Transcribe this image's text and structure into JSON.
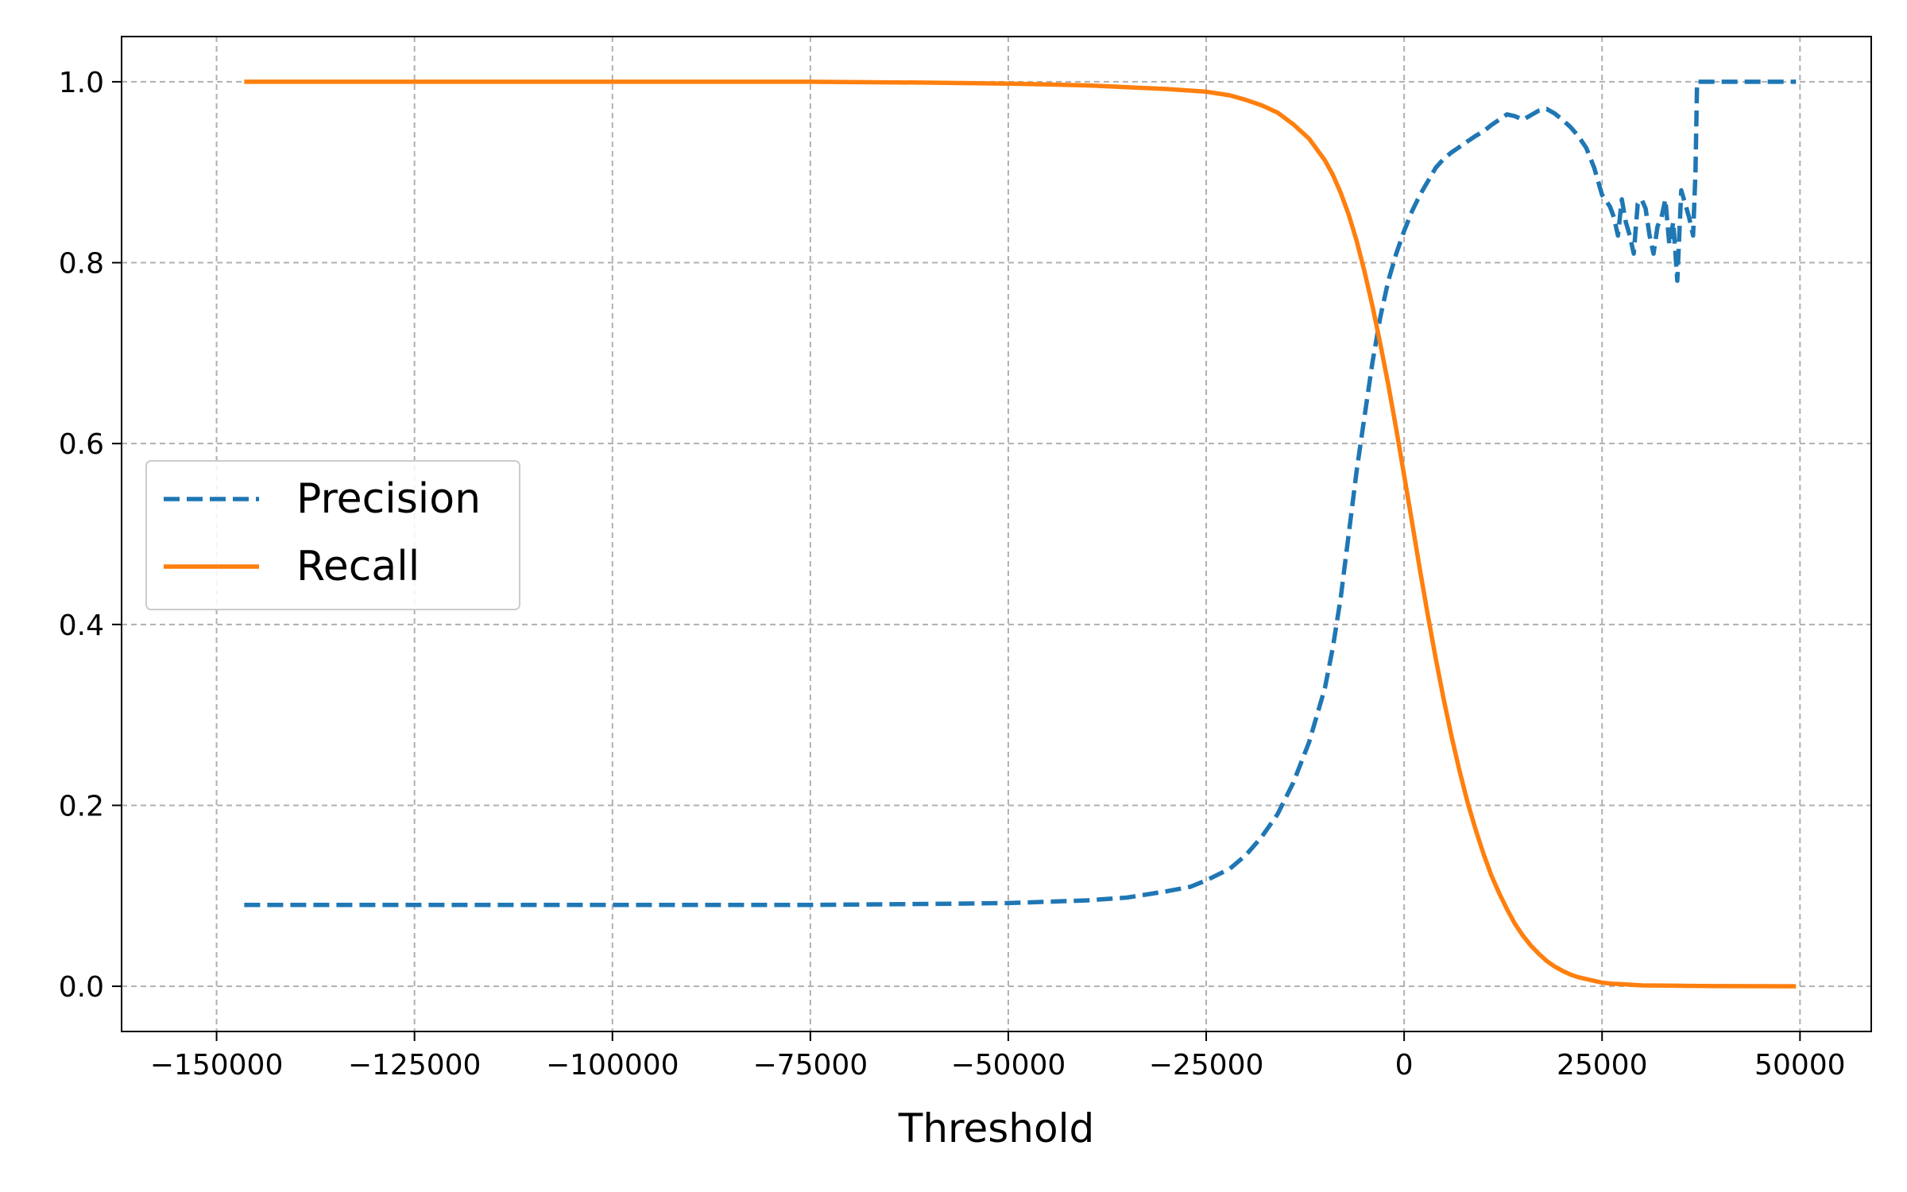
{
  "chart_data": {
    "type": "line",
    "title": "",
    "xlabel": "Threshold",
    "ylabel": "",
    "xlim": [
      -162000,
      59000
    ],
    "ylim": [
      -0.05,
      1.05
    ],
    "xticks": [
      -150000,
      -125000,
      -100000,
      -75000,
      -50000,
      -25000,
      0,
      25000,
      50000
    ],
    "xtick_labels": [
      "−150000",
      "−125000",
      "−100000",
      "−75000",
      "−50000",
      "−25000",
      "0",
      "25000",
      "50000"
    ],
    "yticks": [
      0.0,
      0.2,
      0.4,
      0.6,
      0.8,
      1.0
    ],
    "ytick_labels": [
      "0.0",
      "0.2",
      "0.4",
      "0.6",
      "0.8",
      "1.0"
    ],
    "grid": true,
    "legend_position": "center-left",
    "series": [
      {
        "name": "Precision",
        "color": "#1f77b4",
        "style": "dashed",
        "x": [
          -146500,
          -125000,
          -100000,
          -75000,
          -60000,
          -50000,
          -40000,
          -35000,
          -30000,
          -27000,
          -25000,
          -22000,
          -20000,
          -18000,
          -16000,
          -14000,
          -12000,
          -10000,
          -9000,
          -8000,
          -7000,
          -6000,
          -5000,
          -4000,
          -3000,
          -2000,
          -1000,
          0,
          1000,
          2000,
          3000,
          4000,
          5000,
          6000,
          7000,
          8000,
          9000,
          10000,
          11000,
          12000,
          13000,
          14000,
          15000,
          16000,
          17000,
          18000,
          19000,
          20000,
          21000,
          22000,
          23000,
          24000,
          25000,
          26000,
          26500,
          27000,
          27500,
          28000,
          28500,
          29000,
          29500,
          30000,
          30500,
          31000,
          31500,
          32000,
          32500,
          33000,
          33500,
          34000,
          34500,
          35000,
          35500,
          36000,
          36500,
          36800,
          37000,
          40000,
          45000,
          49500
        ],
        "values": [
          0.09,
          0.09,
          0.09,
          0.09,
          0.091,
          0.092,
          0.095,
          0.098,
          0.105,
          0.11,
          0.117,
          0.13,
          0.145,
          0.165,
          0.19,
          0.225,
          0.27,
          0.33,
          0.375,
          0.43,
          0.5,
          0.57,
          0.63,
          0.69,
          0.74,
          0.78,
          0.81,
          0.835,
          0.857,
          0.875,
          0.89,
          0.905,
          0.915,
          0.922,
          0.928,
          0.934,
          0.94,
          0.945,
          0.952,
          0.958,
          0.964,
          0.962,
          0.958,
          0.963,
          0.968,
          0.97,
          0.965,
          0.958,
          0.95,
          0.94,
          0.927,
          0.905,
          0.875,
          0.862,
          0.85,
          0.83,
          0.87,
          0.845,
          0.83,
          0.81,
          0.865,
          0.87,
          0.86,
          0.83,
          0.81,
          0.84,
          0.85,
          0.87,
          0.82,
          0.845,
          0.78,
          0.88,
          0.865,
          0.85,
          0.83,
          0.9,
          1.0,
          1.0,
          1.0,
          1.0
        ]
      },
      {
        "name": "Recall",
        "color": "#ff7f0e",
        "style": "solid",
        "x": [
          -146500,
          -125000,
          -100000,
          -75000,
          -60000,
          -50000,
          -45000,
          -40000,
          -35000,
          -30000,
          -25000,
          -22000,
          -20000,
          -18000,
          -16000,
          -14000,
          -12000,
          -10000,
          -9000,
          -8000,
          -7000,
          -6000,
          -5000,
          -4000,
          -3000,
          -2000,
          -1000,
          0,
          1000,
          2000,
          3000,
          4000,
          5000,
          6000,
          7000,
          8000,
          9000,
          10000,
          11000,
          12000,
          13000,
          14000,
          15000,
          16000,
          17000,
          18000,
          19000,
          20000,
          21000,
          22000,
          23000,
          24000,
          25000,
          26000,
          28000,
          30000,
          33000,
          36000,
          40000,
          45000,
          49500
        ],
        "values": [
          1.0,
          1.0,
          1.0,
          1.0,
          0.999,
          0.998,
          0.997,
          0.996,
          0.994,
          0.992,
          0.989,
          0.985,
          0.98,
          0.974,
          0.966,
          0.953,
          0.937,
          0.913,
          0.897,
          0.877,
          0.853,
          0.824,
          0.79,
          0.752,
          0.71,
          0.665,
          0.616,
          0.565,
          0.513,
          0.46,
          0.41,
          0.362,
          0.317,
          0.276,
          0.238,
          0.204,
          0.174,
          0.147,
          0.123,
          0.103,
          0.085,
          0.069,
          0.056,
          0.045,
          0.036,
          0.028,
          0.022,
          0.017,
          0.013,
          0.01,
          0.008,
          0.006,
          0.004,
          0.003,
          0.002,
          0.001,
          0.0007,
          0.0004,
          0.0002,
          0.0001,
          0.0
        ]
      }
    ]
  }
}
